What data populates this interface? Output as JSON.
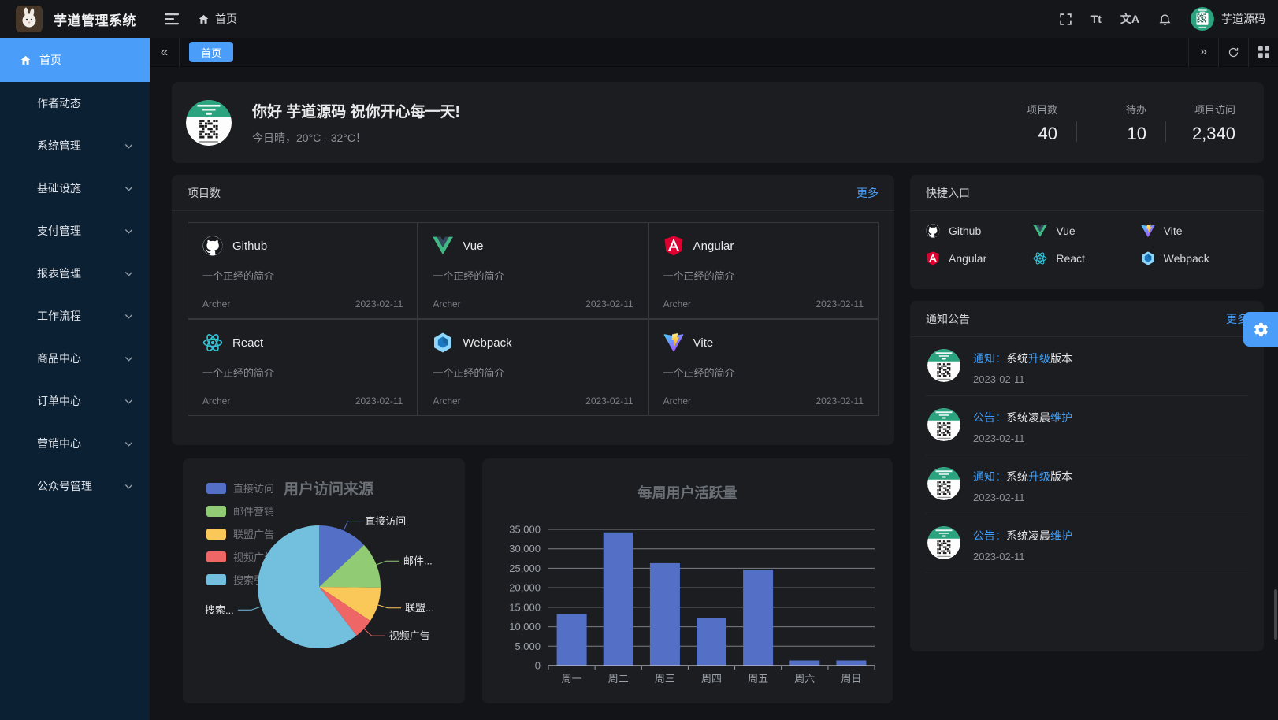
{
  "app": {
    "title": "芋道管理系统",
    "accent_color": "#4a9df9",
    "link_color": "#4a9ff9"
  },
  "header": {
    "breadcrumb": {
      "home_label": "首页"
    },
    "icons": [
      "fullscreen-icon",
      "font-size-icon",
      "locale-icon",
      "bell-icon"
    ],
    "font_size_icon_text": "Tt",
    "locale_icon_text": "文A",
    "user_name": "芋道源码"
  },
  "tabbar": {
    "active_tab": "首页"
  },
  "sidebar": {
    "items": [
      {
        "id": "home",
        "label": "首页",
        "icon": "home-icon",
        "active": true,
        "has_children": false
      },
      {
        "id": "author-trends",
        "label": "作者动态",
        "active": false,
        "has_children": false
      },
      {
        "id": "system",
        "label": "系统管理",
        "active": false,
        "has_children": true
      },
      {
        "id": "infra",
        "label": "基础设施",
        "active": false,
        "has_children": true
      },
      {
        "id": "pay",
        "label": "支付管理",
        "active": false,
        "has_children": true
      },
      {
        "id": "report",
        "label": "报表管理",
        "active": false,
        "has_children": true
      },
      {
        "id": "workflow",
        "label": "工作流程",
        "active": false,
        "has_children": true
      },
      {
        "id": "product",
        "label": "商品中心",
        "active": false,
        "has_children": true
      },
      {
        "id": "order",
        "label": "订单中心",
        "active": false,
        "has_children": true
      },
      {
        "id": "marketing",
        "label": "营销中心",
        "active": false,
        "has_children": true
      },
      {
        "id": "mp",
        "label": "公众号管理",
        "active": false,
        "has_children": true
      }
    ]
  },
  "welcome": {
    "greeting": "你好 芋道源码 祝你开心每一天!",
    "weather": "今日晴，20°C - 32°C！",
    "stats": [
      {
        "label": "项目数",
        "value": "40"
      },
      {
        "label": "待办",
        "value": "10"
      },
      {
        "label": "项目访问",
        "value": "2,340"
      }
    ]
  },
  "projects": {
    "title": "项目数",
    "more_label": "更多",
    "items": [
      {
        "name": "Github",
        "icon": "github-icon",
        "desc": "一个正经的简介",
        "author": "Archer",
        "date": "2023-02-11"
      },
      {
        "name": "Vue",
        "icon": "vue-icon",
        "desc": "一个正经的简介",
        "author": "Archer",
        "date": "2023-02-11"
      },
      {
        "name": "Angular",
        "icon": "angular-icon",
        "desc": "一个正经的简介",
        "author": "Archer",
        "date": "2023-02-11"
      },
      {
        "name": "React",
        "icon": "react-icon",
        "desc": "一个正经的简介",
        "author": "Archer",
        "date": "2023-02-11"
      },
      {
        "name": "Webpack",
        "icon": "webpack-icon",
        "desc": "一个正经的简介",
        "author": "Archer",
        "date": "2023-02-11"
      },
      {
        "name": "Vite",
        "icon": "vite-icon",
        "desc": "一个正经的简介",
        "author": "Archer",
        "date": "2023-02-11"
      }
    ]
  },
  "shortcuts": {
    "title": "快捷入口",
    "items": [
      {
        "name": "Github",
        "icon": "github-icon"
      },
      {
        "name": "Vue",
        "icon": "vue-icon"
      },
      {
        "name": "Vite",
        "icon": "vite-icon"
      },
      {
        "name": "Angular",
        "icon": "angular-icon"
      },
      {
        "name": "React",
        "icon": "react-icon"
      },
      {
        "name": "Webpack",
        "icon": "webpack-icon"
      }
    ]
  },
  "notices": {
    "title": "通知公告",
    "more_label": "更多",
    "items": [
      {
        "parts": [
          {
            "text": "通知：",
            "highlight": true
          },
          {
            "text": "系统",
            "highlight": false
          },
          {
            "text": "升级",
            "highlight": true
          },
          {
            "text": "版本",
            "highlight": false
          }
        ],
        "date": "2023-02-11"
      },
      {
        "parts": [
          {
            "text": "公告：",
            "highlight": true
          },
          {
            "text": "系统凌晨",
            "highlight": false
          },
          {
            "text": "维护",
            "highlight": true
          }
        ],
        "date": "2023-02-11"
      },
      {
        "parts": [
          {
            "text": "通知：",
            "highlight": true
          },
          {
            "text": "系统",
            "highlight": false
          },
          {
            "text": "升级",
            "highlight": true
          },
          {
            "text": "版本",
            "highlight": false
          }
        ],
        "date": "2023-02-11"
      },
      {
        "parts": [
          {
            "text": "公告：",
            "highlight": true
          },
          {
            "text": "系统凌晨",
            "highlight": false
          },
          {
            "text": "维护",
            "highlight": true
          }
        ],
        "date": "2023-02-11"
      }
    ]
  },
  "chart_data": [
    {
      "type": "pie",
      "title": "用户访问来源",
      "legend": [
        "直接访问",
        "邮件营销",
        "联盟广告",
        "视频广告",
        "搜索引擎"
      ],
      "labels_display": [
        "直接访问",
        "邮件...",
        "联盟...",
        "视频广告",
        "搜索..."
      ],
      "values": [
        335,
        310,
        234,
        135,
        1548
      ],
      "colors": [
        "#5470c6",
        "#91cc75",
        "#fac858",
        "#ee6666",
        "#73c0de"
      ],
      "legend_position": "top-left"
    },
    {
      "type": "bar",
      "title": "每周用户活跃量",
      "categories": [
        "周一",
        "周二",
        "周三",
        "周四",
        "周五",
        "周六",
        "周日"
      ],
      "values": [
        13253,
        34235,
        26321,
        12340,
        24643,
        1322,
        1324
      ],
      "ylim": [
        0,
        35000
      ],
      "ytick_step": 5000,
      "bar_color": "#5470c6",
      "grid": "on"
    }
  ]
}
